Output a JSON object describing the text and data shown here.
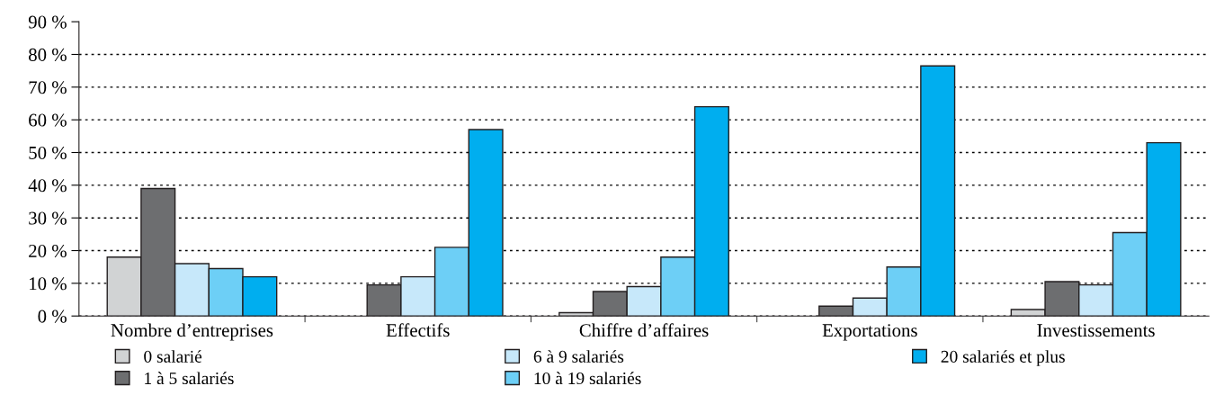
{
  "chart_data": {
    "type": "bar",
    "categories": [
      "Nombre d’entreprises",
      "Effectifs",
      "Chiffre d’affaires",
      "Exportations",
      "Investissements"
    ],
    "series": [
      {
        "name": "0 salarié",
        "color": "#d1d3d4",
        "values": [
          18,
          null,
          1,
          null,
          2
        ]
      },
      {
        "name": "1 à 5 salariés",
        "color": "#6d6e70",
        "values": [
          39,
          9.5,
          7.5,
          3,
          10.5
        ]
      },
      {
        "name": "6 à 9 salariés",
        "color": "#c7e8fa",
        "values": [
          16,
          12,
          9,
          5.5,
          9.5
        ]
      },
      {
        "name": "10 à 19 salariés",
        "color": "#6dcff6",
        "values": [
          14.5,
          21,
          18,
          15,
          25.5
        ]
      },
      {
        "name": "20 salariés et plus",
        "color": "#00aeef",
        "values": [
          12,
          57,
          64,
          76.5,
          53
        ]
      }
    ],
    "ylim": [
      0,
      90
    ],
    "yticks": [
      {
        "value": 0,
        "label": "0 %"
      },
      {
        "value": 10,
        "label": "10 %"
      },
      {
        "value": 20,
        "label": "20 %"
      },
      {
        "value": 30,
        "label": "30 %"
      },
      {
        "value": 40,
        "label": "40 %"
      },
      {
        "value": 50,
        "label": "50 %"
      },
      {
        "value": 60,
        "label": "60 %"
      },
      {
        "value": 70,
        "label": "70 %"
      },
      {
        "value": 80,
        "label": "80 %"
      },
      {
        "value": 90,
        "label": "90 %"
      }
    ],
    "grid": "y",
    "legend": "bottom"
  }
}
